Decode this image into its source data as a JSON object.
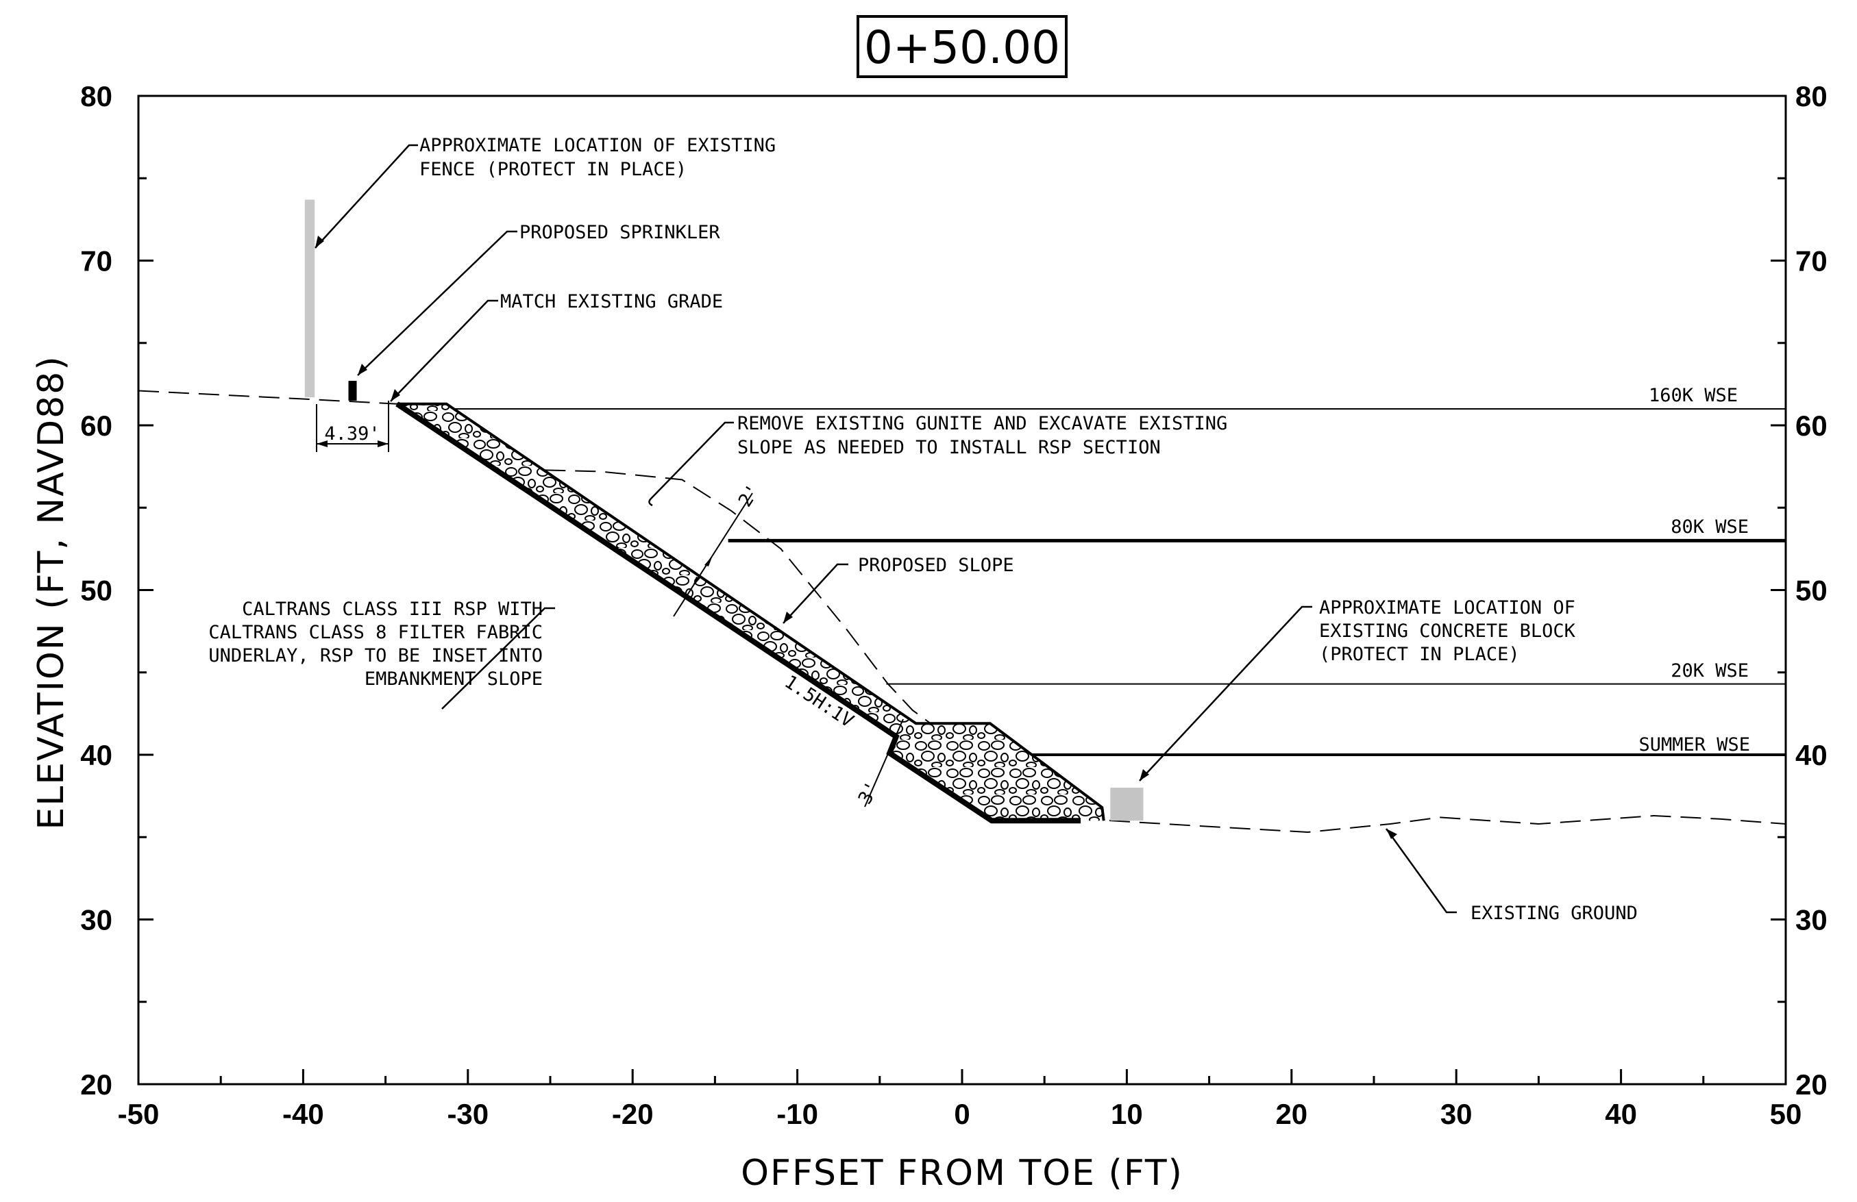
{
  "station_label": "0+50.00",
  "axes": {
    "xlabel": "OFFSET FROM TOE (FT)",
    "ylabel": "ELEVATION (FT, NAVD88)",
    "xlim": [
      -50,
      50
    ],
    "ylim": [
      20,
      80
    ],
    "x_ticks": [
      "-50",
      "-40",
      "-30",
      "-20",
      "-10",
      "0",
      "10",
      "20",
      "30",
      "40",
      "50"
    ],
    "y_ticks": [
      "20",
      "30",
      "40",
      "50",
      "60",
      "70",
      "80"
    ]
  },
  "water_levels": {
    "wse_160k": {
      "label": "160K WSE",
      "elevation": 61
    },
    "wse_80k": {
      "label": "80K WSE",
      "elevation": 53
    },
    "wse_20k": {
      "label": "20K WSE",
      "elevation": 44.3
    },
    "wse_summer": {
      "label": "SUMMER WSE",
      "elevation": 40
    }
  },
  "dimensions": {
    "offset": "4.39'",
    "thickness_top": "2'",
    "thickness_toe": "3'",
    "slope_ratio": "1.5H:1V"
  },
  "notes": {
    "fence": [
      "APPROXIMATE LOCATION OF EXISTING",
      "FENCE (PROTECT IN PLACE)"
    ],
    "sprinkler": "PROPOSED SPRINKLER",
    "match_grade": "MATCH EXISTING GRADE",
    "remove_gunite": [
      "REMOVE EXISTING GUNITE AND EXCAVATE EXISTING",
      "SLOPE AS NEEDED TO INSTALL RSP SECTION"
    ],
    "proposed_slope": "PROPOSED SLOPE",
    "rsp": [
      "CALTRANS CLASS III RSP WITH",
      "CALTRANS CLASS 8 FILTER FABRIC",
      "UNDERLAY, RSP TO BE INSET INTO",
      "EMBANKMENT SLOPE"
    ],
    "concrete_block": [
      "APPROXIMATE LOCATION OF",
      "EXISTING CONCRETE BLOCK",
      "(PROTECT IN PLACE)"
    ],
    "existing_ground": "EXISTING GROUND"
  },
  "profiles": {
    "existing_ground": [
      [
        -50,
        62.1
      ],
      [
        -40,
        61.6
      ],
      [
        -34.3,
        61.3
      ],
      [
        -30,
        59
      ],
      [
        -26,
        57.3
      ],
      [
        -22,
        57.2
      ],
      [
        -17,
        56.7
      ],
      [
        -14,
        54.8
      ],
      [
        -11,
        52.5
      ],
      [
        -7,
        47.6
      ],
      [
        -4.5,
        44.3
      ],
      [
        -3,
        42.7
      ],
      [
        0,
        40.5
      ],
      [
        3,
        38.6
      ],
      [
        6,
        37.4
      ],
      [
        9,
        36
      ],
      [
        14,
        35.7
      ],
      [
        21,
        35.3
      ],
      [
        26,
        35.8
      ],
      [
        29,
        36.2
      ],
      [
        35,
        35.8
      ],
      [
        42,
        36.3
      ],
      [
        46,
        36.1
      ],
      [
        50,
        35.8
      ]
    ],
    "rsp_surface": [
      [
        -34.3,
        61.3
      ],
      [
        -31.3,
        61.3
      ],
      [
        -2.8,
        41.9
      ],
      [
        1.7,
        41.9
      ],
      [
        8.5,
        36.8
      ],
      [
        8.6,
        36
      ]
    ],
    "rsp_bottom": [
      [
        -34.3,
        61.3
      ],
      [
        -4,
        41.1
      ],
      [
        -4.4,
        40.1
      ],
      [
        1.8,
        36
      ],
      [
        7.2,
        36
      ]
    ],
    "fence": {
      "x": -39.6,
      "y_bottom": 61.7,
      "y_top": 73.7
    },
    "sprinkler": {
      "x": -37,
      "y_bottom": 61.5,
      "y_top": 62.7
    },
    "concrete_block": {
      "x0": 9,
      "x1": 11,
      "y0": 36,
      "y1": 38
    }
  }
}
